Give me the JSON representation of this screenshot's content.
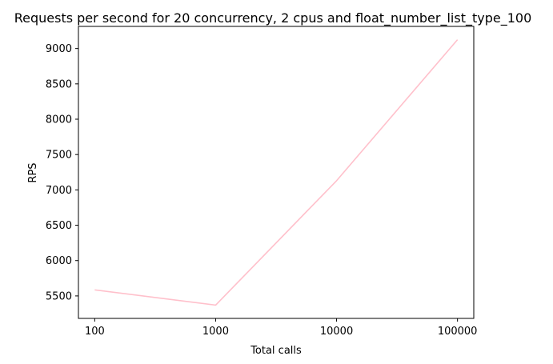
{
  "chart_data": {
    "type": "line",
    "title": "Requests per second for 20 concurrency, 2 cpus and float_number_list_type_100",
    "xlabel": "Total calls",
    "ylabel": "RPS",
    "x_scale": "log",
    "x": [
      100,
      1000,
      10000,
      100000
    ],
    "x_tick_labels": [
      "100",
      "1000",
      "10000",
      "100000"
    ],
    "series": [
      {
        "values": [
          5585,
          5370,
          7130,
          9125
        ],
        "color": "#ffc0cb"
      }
    ],
    "y_ticks": [
      5500,
      6000,
      6500,
      7000,
      7500,
      8000,
      8500,
      9000
    ],
    "ylim": [
      5182,
      9313
    ],
    "grid": false,
    "legend": "none"
  }
}
